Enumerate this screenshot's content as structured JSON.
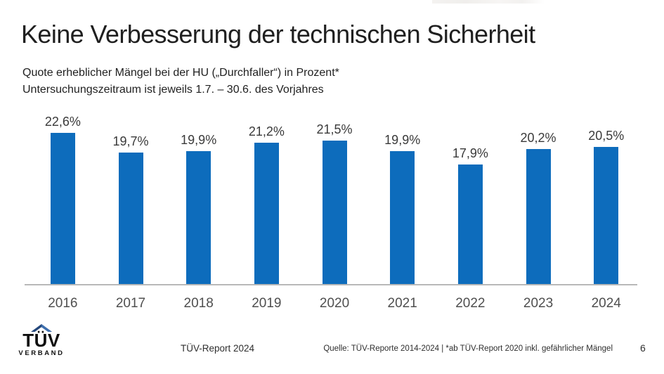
{
  "page": {
    "title": "Keine Verbesserung der technischen Sicherheit",
    "subtitle_line1": "Quote erheblicher Mängel bei der HU („Durchfaller“) in Prozent*",
    "subtitle_line2": "Untersuchungszeitraum ist jeweils 1.7. – 30.6. des Vorjahres"
  },
  "chart_data": {
    "type": "bar",
    "title": "Quote erheblicher Mängel bei der HU („Durchfaller“) in Prozent",
    "categories": [
      "2016",
      "2017",
      "2018",
      "2019",
      "2020",
      "2021",
      "2022",
      "2023",
      "2024"
    ],
    "values": [
      22.6,
      19.7,
      19.9,
      21.2,
      21.5,
      19.9,
      17.9,
      20.2,
      20.5
    ],
    "value_labels": [
      "22,6%",
      "19,7%",
      "19,9%",
      "21,2%",
      "21,5%",
      "19,9%",
      "17,9%",
      "20,2%",
      "20,5%"
    ],
    "xlabel": "",
    "ylabel": "",
    "ylim": [
      0,
      25
    ],
    "grid": false,
    "legend": false,
    "bar_color": "#0d6cbc",
    "axis_line_color": "#b8b8b8"
  },
  "footer": {
    "logo": {
      "word": "TÜV",
      "sub": "VERBAND",
      "roof_color": "#24477b"
    },
    "report_label": "TÜV-Report 2024",
    "source": "Quelle: TÜV-Reporte 2014-2024 | *ab TÜV-Report 2020 inkl. gefährlicher Mängel",
    "page_number": "6"
  }
}
